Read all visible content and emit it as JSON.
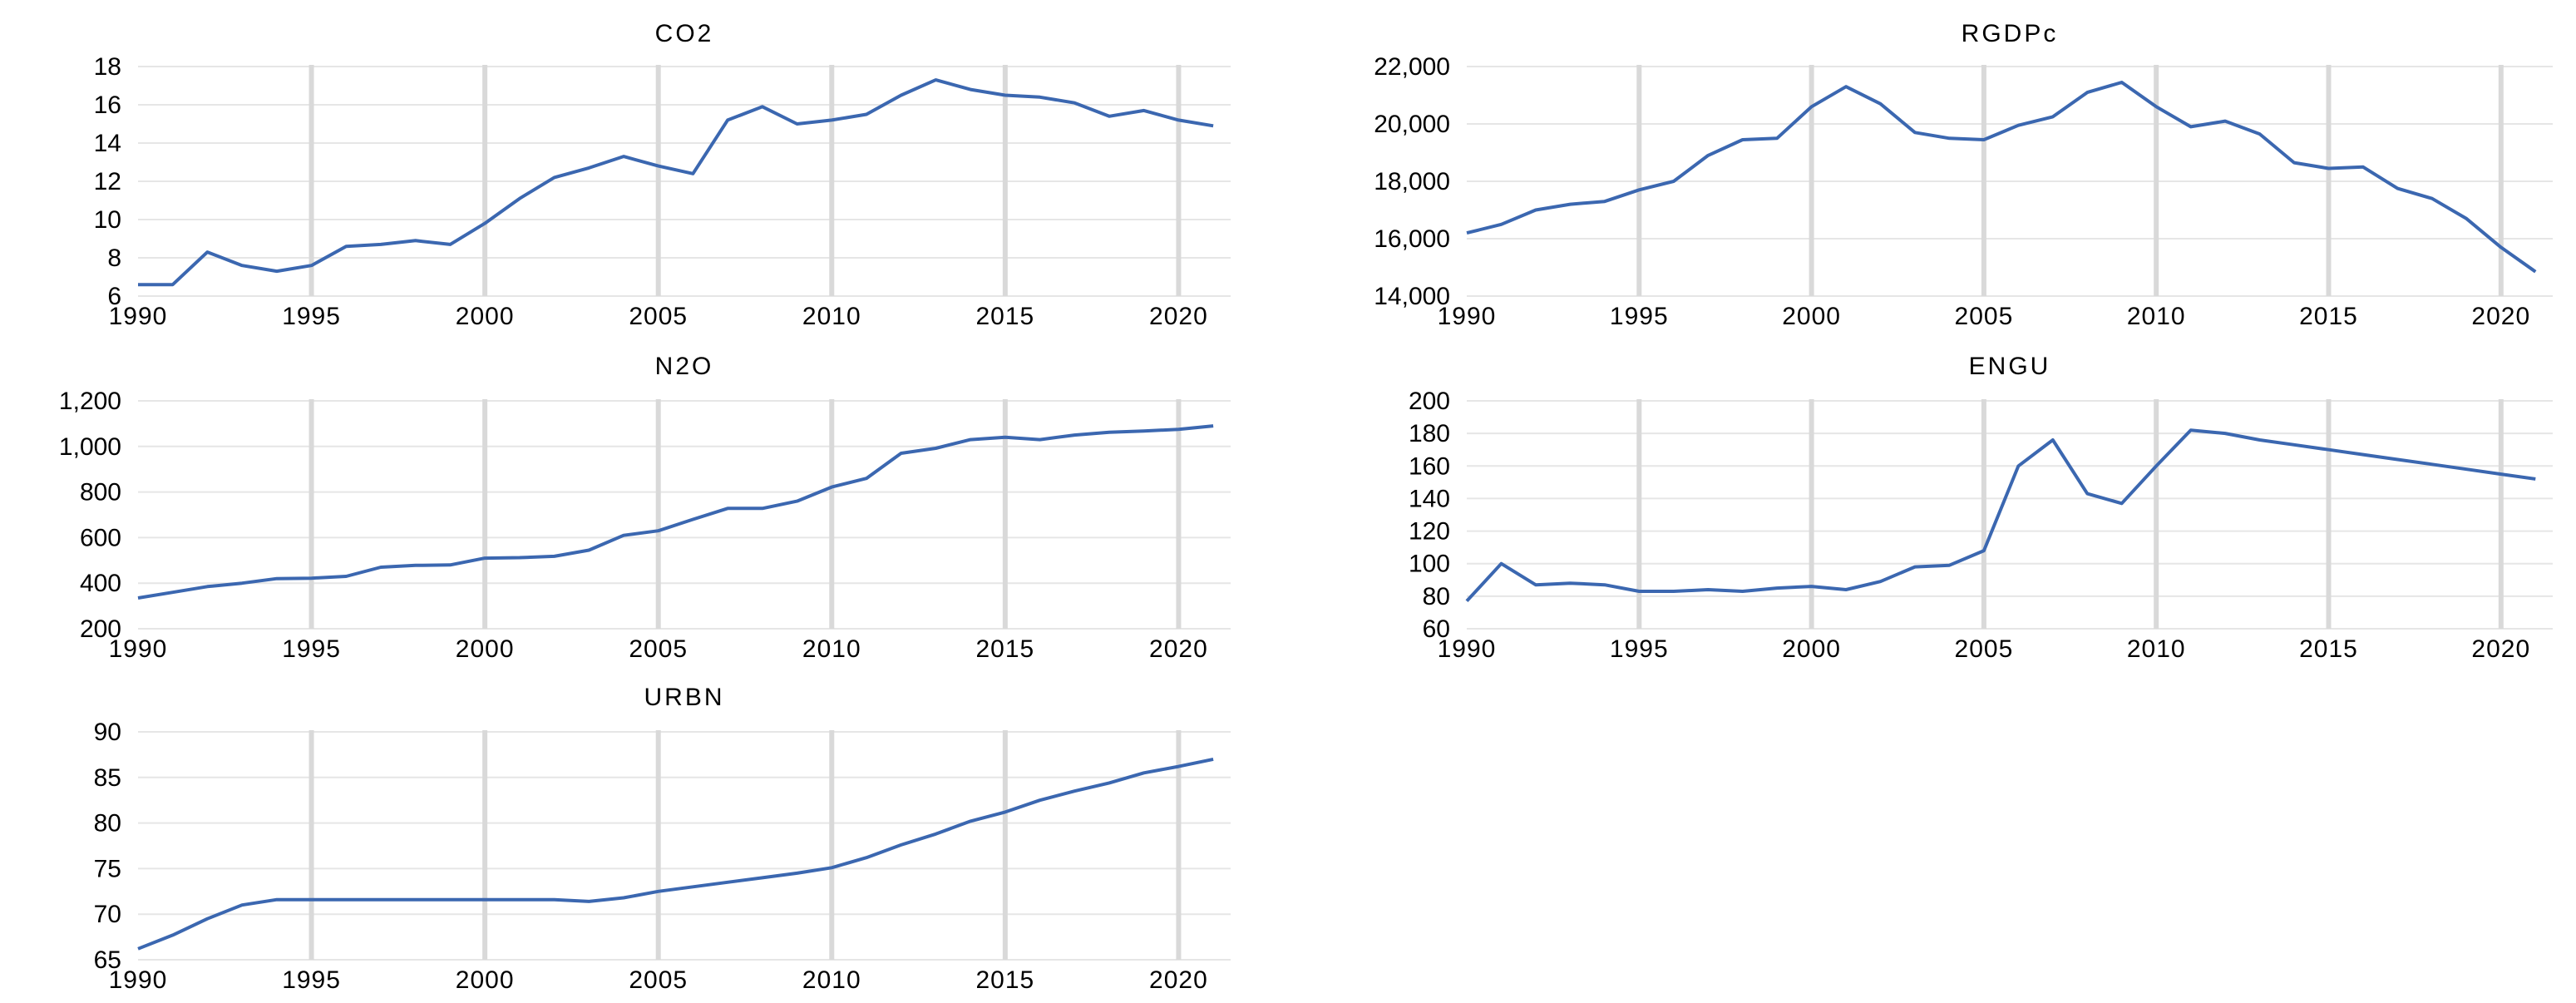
{
  "colors": {
    "line": "#3b67b0",
    "grid_vertical": "#d9d9d9",
    "grid_horizontal": "#e6e6e6"
  },
  "chart_data": [
    {
      "type": "line",
      "title": "CO2",
      "x": [
        1990,
        1991,
        1992,
        1993,
        1994,
        1995,
        1996,
        1997,
        1998,
        1999,
        2000,
        2001,
        2002,
        2003,
        2004,
        2005,
        2006,
        2007,
        2008,
        2009,
        2010,
        2011,
        2012,
        2013,
        2014,
        2015,
        2016,
        2017,
        2018,
        2019,
        2020,
        2021
      ],
      "series": [
        {
          "values": [
            6.6,
            6.6,
            8.3,
            7.6,
            7.3,
            7.6,
            8.6,
            8.7,
            8.9,
            8.7,
            9.8,
            11.1,
            12.2,
            12.7,
            13.3,
            12.8,
            12.4,
            15.2,
            15.9,
            15.0,
            15.2,
            15.5,
            16.5,
            17.3,
            16.8,
            16.5,
            16.4,
            16.1,
            15.4,
            15.7,
            15.2,
            14.9
          ]
        }
      ],
      "xticks": [
        1990,
        1995,
        2000,
        2005,
        2010,
        2015,
        2020
      ],
      "yticks": [
        6,
        8,
        10,
        12,
        14,
        16,
        18
      ],
      "yticklabels": [
        "6",
        "8",
        "10",
        "12",
        "14",
        "16",
        "18"
      ],
      "xlim": [
        1990,
        2021.5
      ],
      "ylim": [
        6,
        18
      ],
      "xlabel": "",
      "ylabel": "",
      "grid": true
    },
    {
      "type": "line",
      "title": "RGDPc",
      "x": [
        1990,
        1991,
        1992,
        1993,
        1994,
        1995,
        1996,
        1997,
        1998,
        1999,
        2000,
        2001,
        2002,
        2003,
        2004,
        2005,
        2006,
        2007,
        2008,
        2009,
        2010,
        2011,
        2012,
        2013,
        2014,
        2015,
        2016,
        2017,
        2018,
        2019,
        2020,
        2021
      ],
      "series": [
        {
          "values": [
            16200,
            16500,
            17000,
            17200,
            17300,
            17700,
            18000,
            18900,
            19450,
            19500,
            20600,
            21300,
            20700,
            19700,
            19500,
            19450,
            19950,
            20250,
            21100,
            21450,
            20600,
            19900,
            20100,
            19650,
            18650,
            18450,
            18500,
            17750,
            17400,
            16700,
            15700,
            14850
          ]
        }
      ],
      "xticks": [
        1990,
        1995,
        2000,
        2005,
        2010,
        2015,
        2020
      ],
      "yticks": [
        14000,
        16000,
        18000,
        20000,
        22000
      ],
      "yticklabels": [
        "14,000",
        "16,000",
        "18,000",
        "20,000",
        "22,000"
      ],
      "xlim": [
        1990,
        2021.5
      ],
      "ylim": [
        14000,
        22000
      ],
      "xlabel": "",
      "ylabel": "",
      "grid": true
    },
    {
      "type": "line",
      "title": "N2O",
      "x": [
        1990,
        1991,
        1992,
        1993,
        1994,
        1995,
        1996,
        1997,
        1998,
        1999,
        2000,
        2001,
        2002,
        2003,
        2004,
        2005,
        2006,
        2007,
        2008,
        2009,
        2010,
        2011,
        2012,
        2013,
        2014,
        2015,
        2016,
        2017,
        2018,
        2019,
        2020,
        2021
      ],
      "series": [
        {
          "values": [
            335,
            360,
            385,
            400,
            420,
            422,
            430,
            470,
            478,
            480,
            510,
            512,
            518,
            545,
            610,
            630,
            680,
            728,
            728,
            760,
            822,
            860,
            970,
            992,
            1030,
            1040,
            1030,
            1050,
            1062,
            1068,
            1075,
            1090
          ]
        }
      ],
      "xticks": [
        1990,
        1995,
        2000,
        2005,
        2010,
        2015,
        2020
      ],
      "yticks": [
        200,
        400,
        600,
        800,
        1000,
        1200
      ],
      "yticklabels": [
        "200",
        "400",
        "600",
        "800",
        "1,000",
        "1,200"
      ],
      "xlim": [
        1990,
        2021.5
      ],
      "ylim": [
        200,
        1200
      ],
      "xlabel": "",
      "ylabel": "",
      "grid": true
    },
    {
      "type": "line",
      "title": "ENGU",
      "x": [
        1990,
        1991,
        1992,
        1993,
        1994,
        1995,
        1996,
        1997,
        1998,
        1999,
        2000,
        2001,
        2002,
        2003,
        2004,
        2005,
        2006,
        2007,
        2008,
        2009,
        2010,
        2011,
        2012,
        2013,
        2014,
        2015,
        2016,
        2017,
        2018,
        2019,
        2020,
        2021
      ],
      "series": [
        {
          "values": [
            77,
            100,
            87,
            88,
            87,
            83,
            83,
            84,
            83,
            85,
            86,
            84,
            89,
            98,
            99,
            108,
            160,
            176,
            143,
            137,
            160,
            182,
            180,
            176,
            173,
            170,
            167,
            164,
            161,
            158,
            155,
            152
          ]
        }
      ],
      "xticks": [
        1990,
        1995,
        2000,
        2005,
        2010,
        2015,
        2020
      ],
      "yticks": [
        60,
        80,
        100,
        120,
        140,
        160,
        180,
        200
      ],
      "yticklabels": [
        "60",
        "80",
        "100",
        "120",
        "140",
        "160",
        "180",
        "200"
      ],
      "xlim": [
        1990,
        2021.5
      ],
      "ylim": [
        60,
        200
      ],
      "xlabel": "",
      "ylabel": "",
      "grid": true
    },
    {
      "type": "line",
      "title": "URBN",
      "x": [
        1990,
        1991,
        1992,
        1993,
        1994,
        1995,
        1996,
        1997,
        1998,
        1999,
        2000,
        2001,
        2002,
        2003,
        2004,
        2005,
        2006,
        2007,
        2008,
        2009,
        2010,
        2011,
        2012,
        2013,
        2014,
        2015,
        2016,
        2017,
        2018,
        2019,
        2020,
        2021
      ],
      "series": [
        {
          "values": [
            66.2,
            67.7,
            69.5,
            71.0,
            71.6,
            71.6,
            71.6,
            71.6,
            71.6,
            71.6,
            71.6,
            71.6,
            71.6,
            71.4,
            71.8,
            72.5,
            73.0,
            73.5,
            74.0,
            74.5,
            75.1,
            76.2,
            77.6,
            78.8,
            80.2,
            81.2,
            82.5,
            83.5,
            84.4,
            85.5,
            86.2,
            87.0
          ]
        }
      ],
      "xticks": [
        1990,
        1995,
        2000,
        2005,
        2010,
        2015,
        2020
      ],
      "yticks": [
        65,
        70,
        75,
        80,
        85,
        90
      ],
      "yticklabels": [
        "65",
        "70",
        "75",
        "80",
        "85",
        "90"
      ],
      "xlim": [
        1990,
        2021.5
      ],
      "ylim": [
        65,
        90
      ],
      "xlabel": "",
      "ylabel": "",
      "grid": true
    }
  ]
}
